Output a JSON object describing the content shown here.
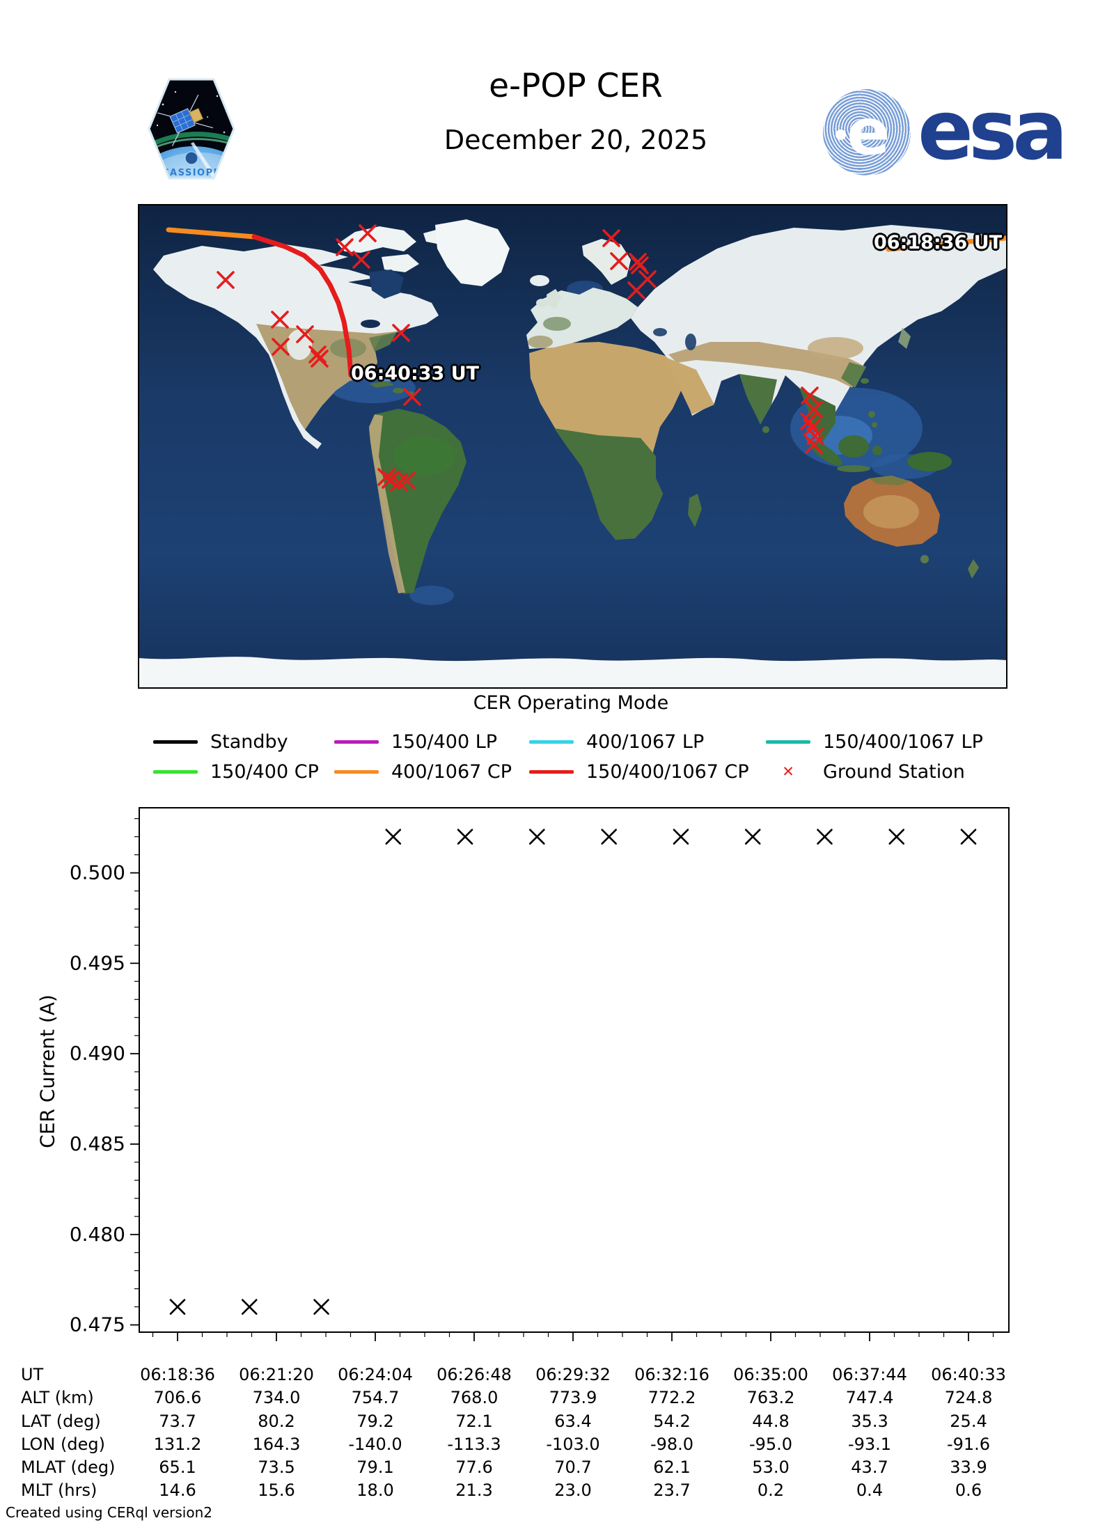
{
  "header": {
    "title": "e-POP CER",
    "date": "December 20, 2025",
    "patch_caption": "CASSIOPE",
    "esa_label": "esa",
    "esa_e": "e",
    "esa_color": "#20418f"
  },
  "map": {
    "start_time_label": "06:18:36 UT",
    "end_time_label": "06:40:33 UT",
    "ground_station_color": "#e61c1c",
    "track_segments": [
      {
        "mode": "400/1067 CP",
        "color": "#f78b20",
        "points": [
          [
            1076,
            63
          ],
          [
            1245,
            47
          ]
        ]
      },
      {
        "mode": "400/1067 CP",
        "color": "#f78b20",
        "points": [
          [
            42,
            35
          ],
          [
            165,
            45
          ]
        ]
      },
      {
        "mode": "150/400/1067 CP",
        "color": "#e61c1c",
        "points": [
          [
            165,
            45
          ],
          [
            209,
            59
          ],
          [
            237,
            72
          ],
          [
            260,
            92
          ],
          [
            274,
            114
          ],
          [
            286,
            140
          ],
          [
            294,
            167
          ],
          [
            301,
            207
          ],
          [
            304,
            244
          ]
        ]
      }
    ],
    "ground_stations": [
      [
        124,
        107
      ],
      [
        328,
        40
      ],
      [
        295,
        60
      ],
      [
        319,
        78
      ],
      [
        202,
        164
      ],
      [
        238,
        185
      ],
      [
        203,
        203
      ],
      [
        256,
        214
      ],
      [
        259,
        220
      ],
      [
        376,
        183
      ],
      [
        392,
        275
      ],
      [
        678,
        47
      ],
      [
        689,
        80
      ],
      [
        716,
        81
      ],
      [
        719,
        86
      ],
      [
        730,
        106
      ],
      [
        714,
        122
      ],
      [
        355,
        390
      ],
      [
        361,
        394
      ],
      [
        373,
        398
      ],
      [
        384,
        395
      ],
      [
        963,
        273
      ],
      [
        969,
        293
      ],
      [
        962,
        310
      ],
      [
        966,
        319
      ],
      [
        971,
        331
      ],
      [
        969,
        344
      ]
    ]
  },
  "legend": {
    "title": "CER Operating Mode",
    "items": [
      {
        "label": "Standby",
        "color": "#000000",
        "type": "line"
      },
      {
        "label": "150/400 LP",
        "color": "#bb1abb",
        "type": "line"
      },
      {
        "label": "400/1067 LP",
        "color": "#35d3e8",
        "type": "line"
      },
      {
        "label": "150/400/1067 LP",
        "color": "#1ab9a8",
        "type": "line"
      },
      {
        "label": "150/400 CP",
        "color": "#2ee62e",
        "type": "line"
      },
      {
        "label": "400/1067 CP",
        "color": "#f78b20",
        "type": "line"
      },
      {
        "label": "150/400/1067 CP",
        "color": "#e61c1c",
        "type": "line"
      },
      {
        "label": "Ground Station",
        "color": "#e61c1c",
        "type": "marker-x"
      }
    ]
  },
  "chart_data": {
    "type": "scatter",
    "title": "",
    "xlabel": "UT",
    "ylabel": "CER Current (A)",
    "marker": "x",
    "marker_color": "#000000",
    "ylim": [
      0.4746,
      0.5036
    ],
    "y_ticks": [
      "0.475",
      "0.480",
      "0.485",
      "0.490",
      "0.495",
      "0.500"
    ],
    "x_tick_labels": [
      "06:18:36",
      "06:21:20",
      "06:24:04",
      "06:26:48",
      "06:29:32",
      "06:32:16",
      "06:35:00",
      "06:37:44",
      "06:40:33"
    ],
    "points": [
      {
        "x_frac": 0.0,
        "y": 0.476
      },
      {
        "x_frac": 0.0909,
        "y": 0.476
      },
      {
        "x_frac": 0.1818,
        "y": 0.476
      },
      {
        "x_frac": 0.2727,
        "y": 0.502
      },
      {
        "x_frac": 0.3636,
        "y": 0.502
      },
      {
        "x_frac": 0.4545,
        "y": 0.502
      },
      {
        "x_frac": 0.5455,
        "y": 0.502
      },
      {
        "x_frac": 0.6364,
        "y": 0.502
      },
      {
        "x_frac": 0.7273,
        "y": 0.502
      },
      {
        "x_frac": 0.8182,
        "y": 0.502
      },
      {
        "x_frac": 0.9091,
        "y": 0.502
      },
      {
        "x_frac": 1.0,
        "y": 0.502
      }
    ]
  },
  "table": {
    "rows": [
      {
        "header": "UT",
        "values": [
          "06:18:36",
          "06:21:20",
          "06:24:04",
          "06:26:48",
          "06:29:32",
          "06:32:16",
          "06:35:00",
          "06:37:44",
          "06:40:33"
        ]
      },
      {
        "header": "ALT (km)",
        "values": [
          "706.6",
          "734.0",
          "754.7",
          "768.0",
          "773.9",
          "772.2",
          "763.2",
          "747.4",
          "724.8"
        ]
      },
      {
        "header": "LAT (deg)",
        "values": [
          "73.7",
          "80.2",
          "79.2",
          "72.1",
          "63.4",
          "54.2",
          "44.8",
          "35.3",
          "25.4"
        ]
      },
      {
        "header": "LON (deg)",
        "values": [
          "131.2",
          "164.3",
          "-140.0",
          "-113.3",
          "-103.0",
          "-98.0",
          "-95.0",
          "-93.1",
          "-91.6"
        ]
      },
      {
        "header": "MLAT (deg)",
        "values": [
          "65.1",
          "73.5",
          "79.1",
          "77.6",
          "70.7",
          "62.1",
          "53.0",
          "43.7",
          "33.9"
        ]
      },
      {
        "header": "MLT (hrs)",
        "values": [
          "14.6",
          "15.6",
          "18.0",
          "21.3",
          "23.0",
          "23.7",
          "0.2",
          "0.4",
          "0.6"
        ]
      }
    ]
  },
  "footer": {
    "credit": "Created using CERql version2"
  }
}
